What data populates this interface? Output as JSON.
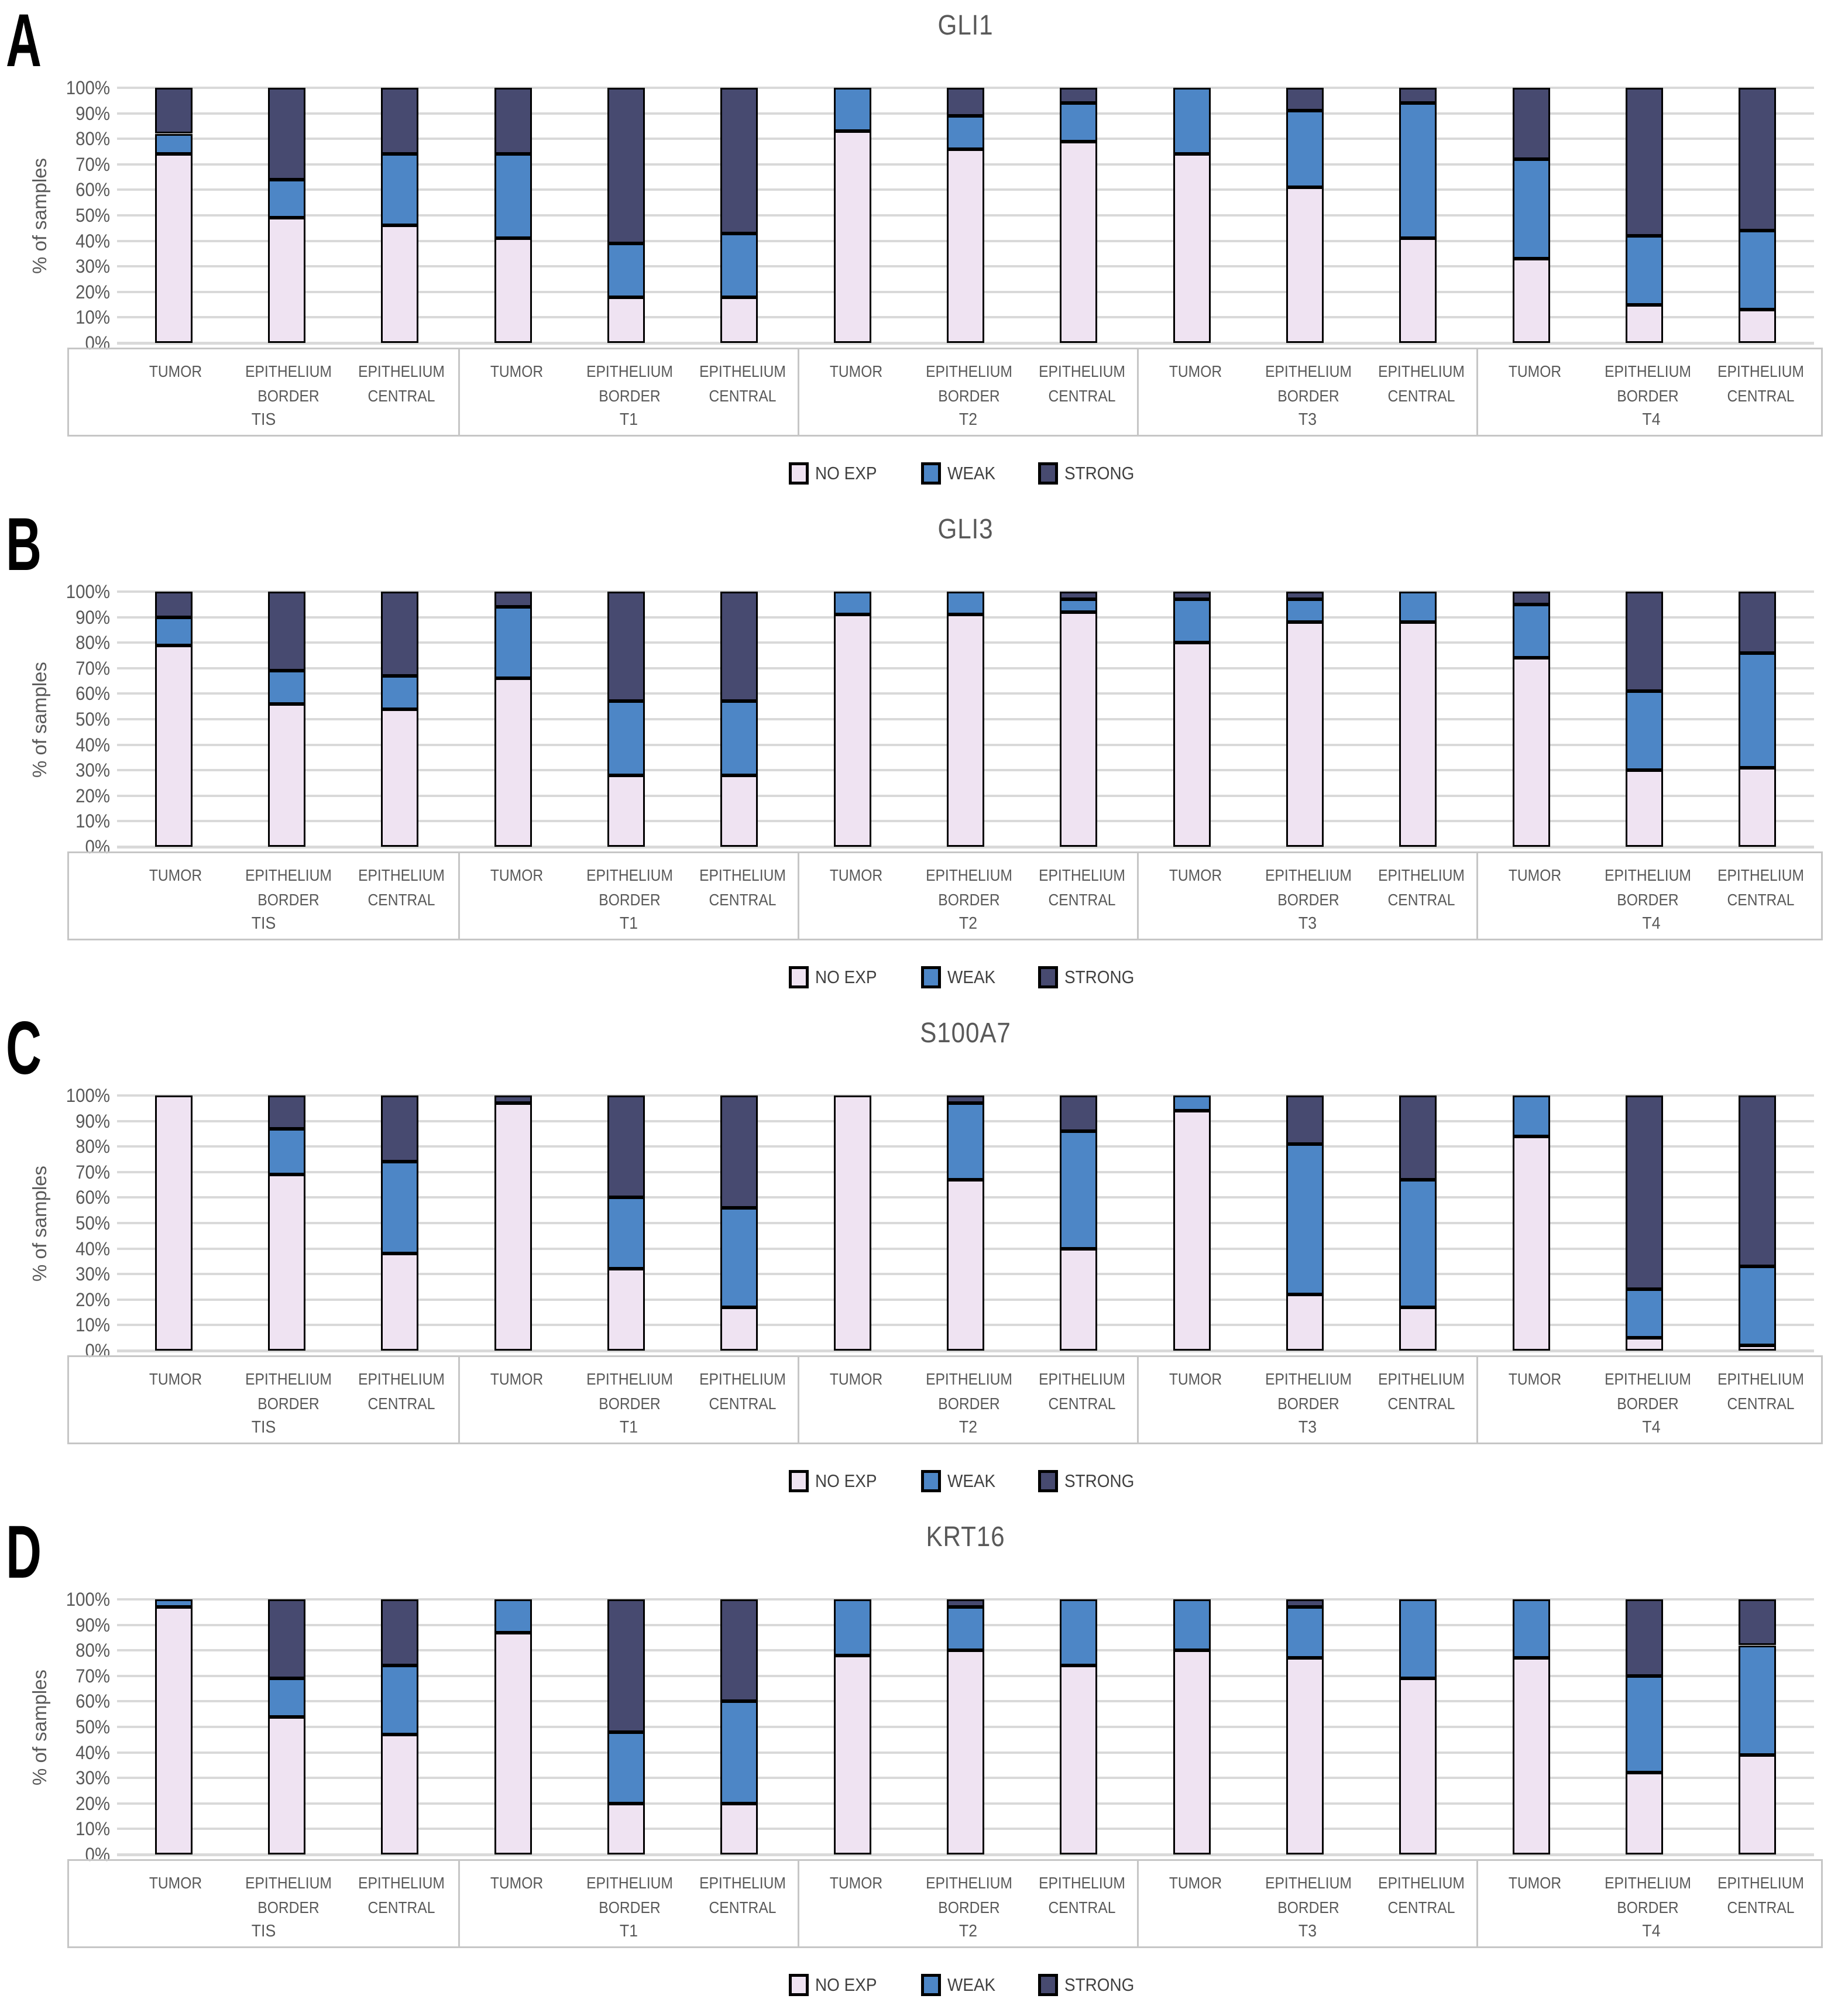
{
  "y_axis": {
    "label": "% of samples",
    "ticks": [
      "0%",
      "10%",
      "20%",
      "30%",
      "40%",
      "50%",
      "60%",
      "70%",
      "80%",
      "90%",
      "100%"
    ],
    "min": 0,
    "max": 100,
    "step": 10,
    "grid": true
  },
  "x_axis": {
    "groups": [
      "TIS",
      "T1",
      "T2",
      "T3",
      "T4"
    ],
    "sites": [
      "TUMOR",
      "EPITHELIUM BORDER",
      "EPITHELIUM CENTRAL"
    ],
    "site_label_lines": [
      [
        "TUMOR"
      ],
      [
        "EPITHELIUM",
        "BORDER"
      ],
      [
        "EPITHELIUM",
        "CENTRAL"
      ]
    ]
  },
  "legend": {
    "items": [
      {
        "label": "NO EXP",
        "color": "#efe3f2"
      },
      {
        "label": "WEAK",
        "color": "#4d86c6"
      },
      {
        "label": "STRONG",
        "color": "#474a70"
      }
    ],
    "position": "bottom-center"
  },
  "colors": {
    "bar_border": "#000000",
    "gridline": "#d9d9d9",
    "axis_text": "#595959",
    "title_text": "#595959",
    "label_box_border": "#c6c6c6"
  },
  "chart_data": [
    {
      "type": "bar",
      "subtype": "stacked-100pct",
      "panel_letter": "A",
      "title": "GLI1",
      "ylabel": "% of samples",
      "ylim": [
        0,
        100
      ],
      "categories": [
        "TIS TUMOR",
        "TIS EPITHELIUM BORDER",
        "TIS EPITHELIUM CENTRAL",
        "T1 TUMOR",
        "T1 EPITHELIUM BORDER",
        "T1 EPITHELIUM CENTRAL",
        "T2 TUMOR",
        "T2 EPITHELIUM BORDER",
        "T2 EPITHELIUM CENTRAL",
        "T3 TUMOR",
        "T3 EPITHELIUM BORDER",
        "T3 EPITHELIUM CENTRAL",
        "T4 TUMOR",
        "T4 EPITHELIUM BORDER",
        "T4 EPITHELIUM CENTRAL"
      ],
      "series": [
        {
          "name": "NO EXP",
          "values": [
            74,
            49,
            46,
            41,
            18,
            18,
            83,
            76,
            79,
            74,
            61,
            41,
            33,
            15,
            13
          ]
        },
        {
          "name": "WEAK",
          "values": [
            8,
            15,
            28,
            33,
            21,
            25,
            17,
            13,
            15,
            26,
            30,
            53,
            39,
            27,
            31
          ]
        },
        {
          "name": "STRONG",
          "values": [
            18,
            36,
            26,
            26,
            61,
            57,
            0,
            11,
            6,
            0,
            9,
            6,
            28,
            58,
            56
          ]
        }
      ]
    },
    {
      "type": "bar",
      "subtype": "stacked-100pct",
      "panel_letter": "B",
      "title": "GLI3",
      "ylabel": "% of samples",
      "ylim": [
        0,
        100
      ],
      "categories": [
        "TIS TUMOR",
        "TIS EPITHELIUM BORDER",
        "TIS EPITHELIUM CENTRAL",
        "T1 TUMOR",
        "T1 EPITHELIUM BORDER",
        "T1 EPITHELIUM CENTRAL",
        "T2 TUMOR",
        "T2 EPITHELIUM BORDER",
        "T2 EPITHELIUM CENTRAL",
        "T3 TUMOR",
        "T3 EPITHELIUM BORDER",
        "T3 EPITHELIUM CENTRAL",
        "T4 TUMOR",
        "T4 EPITHELIUM BORDER",
        "T4 EPITHELIUM CENTRAL"
      ],
      "series": [
        {
          "name": "NO EXP",
          "values": [
            79,
            56,
            54,
            66,
            28,
            28,
            91,
            91,
            92,
            80,
            88,
            88,
            74,
            30,
            31
          ]
        },
        {
          "name": "WEAK",
          "values": [
            11,
            13,
            13,
            28,
            29,
            29,
            9,
            9,
            5,
            17,
            9,
            12,
            21,
            31,
            45
          ]
        },
        {
          "name": "STRONG",
          "values": [
            10,
            31,
            33,
            6,
            43,
            43,
            0,
            0,
            3,
            3,
            3,
            0,
            5,
            39,
            24
          ]
        }
      ]
    },
    {
      "type": "bar",
      "subtype": "stacked-100pct",
      "panel_letter": "C",
      "title": "S100A7",
      "ylabel": "% of samples",
      "ylim": [
        0,
        100
      ],
      "categories": [
        "TIS TUMOR",
        "TIS EPITHELIUM BORDER",
        "TIS EPITHELIUM CENTRAL",
        "T1 TUMOR",
        "T1 EPITHELIUM BORDER",
        "T1 EPITHELIUM CENTRAL",
        "T2 TUMOR",
        "T2 EPITHELIUM BORDER",
        "T2 EPITHELIUM CENTRAL",
        "T3 TUMOR",
        "T3 EPITHELIUM BORDER",
        "T3 EPITHELIUM CENTRAL",
        "T4 TUMOR",
        "T4 EPITHELIUM BORDER",
        "T4 EPITHELIUM CENTRAL"
      ],
      "series": [
        {
          "name": "NO EXP",
          "values": [
            100,
            69,
            38,
            97,
            32,
            17,
            100,
            67,
            40,
            94,
            22,
            17,
            84,
            5,
            2
          ]
        },
        {
          "name": "WEAK",
          "values": [
            0,
            18,
            36,
            0,
            28,
            39,
            0,
            30,
            46,
            6,
            59,
            50,
            16,
            19,
            31
          ]
        },
        {
          "name": "STRONG",
          "values": [
            0,
            13,
            26,
            3,
            40,
            44,
            0,
            3,
            14,
            0,
            19,
            33,
            0,
            76,
            67
          ]
        }
      ]
    },
    {
      "type": "bar",
      "subtype": "stacked-100pct",
      "panel_letter": "D",
      "title": "KRT16",
      "ylabel": "% of samples",
      "ylim": [
        0,
        100
      ],
      "categories": [
        "TIS TUMOR",
        "TIS EPITHELIUM BORDER",
        "TIS EPITHELIUM CENTRAL",
        "T1 TUMOR",
        "T1 EPITHELIUM BORDER",
        "T1 EPITHELIUM CENTRAL",
        "T2 TUMOR",
        "T2 EPITHELIUM BORDER",
        "T2 EPITHELIUM CENTRAL",
        "T3 TUMOR",
        "T3 EPITHELIUM BORDER",
        "T3 EPITHELIUM CENTRAL",
        "T4 TUMOR",
        "T4 EPITHELIUM BORDER",
        "T4 EPITHELIUM CENTRAL"
      ],
      "series": [
        {
          "name": "NO EXP",
          "values": [
            97,
            54,
            47,
            87,
            20,
            20,
            78,
            80,
            74,
            80,
            77,
            69,
            77,
            32,
            39
          ]
        },
        {
          "name": "WEAK",
          "values": [
            3,
            15,
            27,
            13,
            28,
            40,
            22,
            17,
            26,
            20,
            20,
            31,
            23,
            38,
            43
          ]
        },
        {
          "name": "STRONG",
          "values": [
            0,
            31,
            26,
            0,
            52,
            40,
            0,
            3,
            0,
            0,
            3,
            0,
            0,
            30,
            18
          ]
        }
      ]
    }
  ]
}
